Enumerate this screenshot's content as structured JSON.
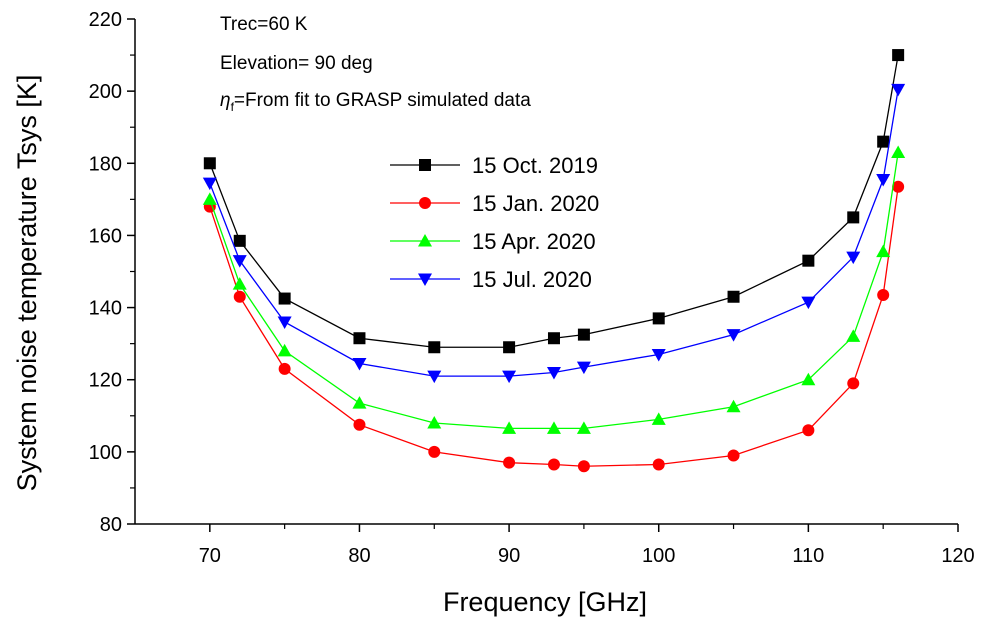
{
  "chart_data": {
    "type": "line",
    "xlabel": "Frequency [GHz]",
    "ylabel": "System noise temperature Tsys [K]",
    "xlim": [
      65,
      120
    ],
    "ylim": [
      80,
      220
    ],
    "xticks": [
      70,
      80,
      90,
      100,
      110,
      120
    ],
    "yticks": [
      80,
      100,
      120,
      140,
      160,
      180,
      200,
      220
    ],
    "x": [
      70,
      72,
      75,
      80,
      85,
      90,
      93,
      95,
      100,
      105,
      110,
      113,
      115,
      116
    ],
    "series": [
      {
        "name": "15 Oct. 2019",
        "color": "#000000",
        "marker": "square",
        "values": [
          180,
          158.5,
          142.5,
          131.5,
          129,
          129,
          131.5,
          132.5,
          137,
          143,
          153,
          165,
          186,
          210
        ]
      },
      {
        "name": "15 Jan. 2020",
        "color": "#ff0000",
        "marker": "circle",
        "values": [
          168,
          143,
          123,
          107.5,
          100,
          97,
          96.5,
          96,
          96.5,
          99,
          106,
          119,
          143.5,
          173.5
        ]
      },
      {
        "name": "15 Apr. 2020",
        "color": "#00ff00",
        "marker": "triangle-up",
        "values": [
          170,
          146.5,
          128,
          113.5,
          108,
          106.5,
          106.5,
          106.5,
          109,
          112.5,
          120,
          132,
          155.5,
          183
        ]
      },
      {
        "name": "15 Jul. 2020",
        "color": "#0000ff",
        "marker": "triangle-down",
        "values": [
          174.5,
          153,
          136,
          124.5,
          121,
          121,
          122,
          123.5,
          127,
          132.5,
          141.5,
          154,
          175.5,
          200.5
        ]
      }
    ],
    "annotations": [
      "Trec=60 K",
      "Elevation= 90 deg",
      "=From fit to GRASP simulated data"
    ],
    "annotation_symbol": "η",
    "annotation_subscript": "f",
    "legend_position": "center-left",
    "grid": false
  }
}
